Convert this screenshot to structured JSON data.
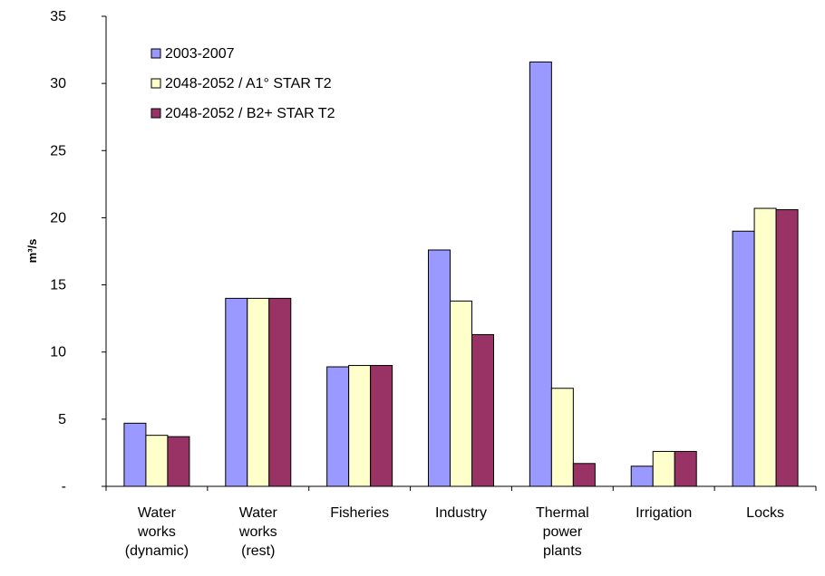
{
  "chart_data": {
    "type": "bar",
    "title": "",
    "xlabel": "",
    "ylabel": "m³/s",
    "ylim": [
      0,
      35
    ],
    "yticks": [
      "-",
      "5",
      "10",
      "15",
      "20",
      "25",
      "30",
      "35"
    ],
    "grid": false,
    "legend_position": "top-left",
    "categories": [
      [
        "Water",
        "works",
        "(dynamic)"
      ],
      [
        "Water",
        "works",
        "(rest)"
      ],
      [
        "Fisheries"
      ],
      [
        "Industry"
      ],
      [
        "Thermal",
        "power",
        "plants"
      ],
      [
        "Irrigation"
      ],
      [
        "Locks"
      ]
    ],
    "series": [
      {
        "name": "2003-2007",
        "color": "#9999FF",
        "values": [
          4.7,
          14.0,
          8.9,
          17.6,
          31.6,
          1.5,
          19.0
        ]
      },
      {
        "name": "2048-2052 / A1° STAR T2",
        "color": "#FFFFCC",
        "values": [
          3.8,
          14.0,
          9.0,
          13.8,
          7.3,
          2.6,
          20.7
        ]
      },
      {
        "name": "2048-2052 / B2+ STAR T2",
        "color": "#993366",
        "values": [
          3.7,
          14.0,
          9.0,
          11.3,
          1.7,
          2.6,
          20.6
        ]
      }
    ]
  }
}
